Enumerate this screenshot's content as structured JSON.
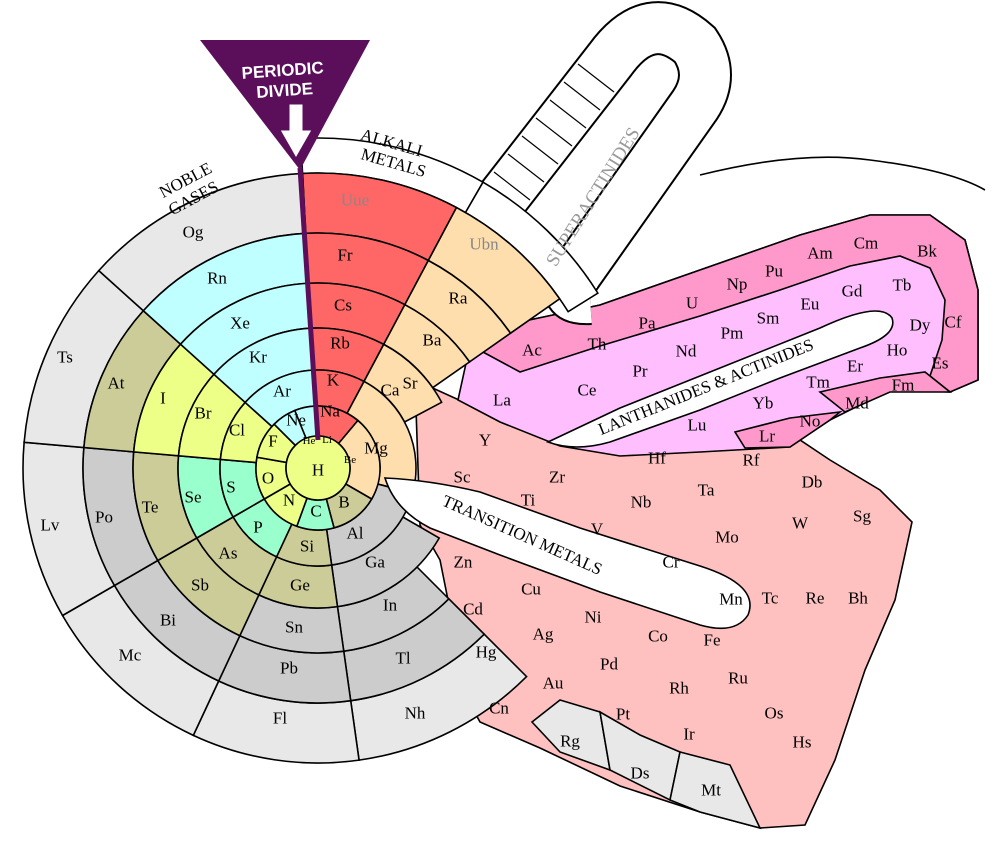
{
  "labels": {
    "periodic_divide": [
      "PERIODIC",
      "DIVIDE"
    ],
    "noble_gases": [
      "NOBLE",
      "GASES"
    ],
    "alkali_metals": [
      "ALKALI",
      "METALS"
    ],
    "superactinides": "SUPERACTINIDES",
    "lanthanides_actinides": "LANTHANIDES & ACTINIDES",
    "transition_metals": "TRANSITION METALS"
  },
  "colors": {
    "nonmetal": "#eeff88",
    "other_nonmetal": "#99ffcc",
    "metalloid": "#cccc99",
    "noble": "#c0ffff",
    "alkali": "#ff6666",
    "alkaline_earth": "#ffdead",
    "post_transition": "#cccccc",
    "unknown": "#e8e8e8",
    "transition": "#ffc0c0",
    "lanthanide": "#ffbfff",
    "actinide": "#ff99cc",
    "undiscovered": "#ffffff",
    "divide": "#5b0f5b"
  },
  "elements": [
    {
      "symbol": "H",
      "category": "nonmetal"
    },
    {
      "symbol": "He",
      "category": "noble"
    },
    {
      "symbol": "Li",
      "category": "alkali"
    },
    {
      "symbol": "Be",
      "category": "alkaline_earth"
    },
    {
      "symbol": "B",
      "category": "metalloid"
    },
    {
      "symbol": "C",
      "category": "other_nonmetal"
    },
    {
      "symbol": "N",
      "category": "nonmetal"
    },
    {
      "symbol": "O",
      "category": "nonmetal"
    },
    {
      "symbol": "F",
      "category": "nonmetal"
    },
    {
      "symbol": "Ne",
      "category": "noble"
    },
    {
      "symbol": "Na",
      "category": "alkali"
    },
    {
      "symbol": "Mg",
      "category": "alkaline_earth"
    },
    {
      "symbol": "Al",
      "category": "post_transition"
    },
    {
      "symbol": "Si",
      "category": "metalloid"
    },
    {
      "symbol": "P",
      "category": "other_nonmetal"
    },
    {
      "symbol": "S",
      "category": "other_nonmetal"
    },
    {
      "symbol": "Cl",
      "category": "nonmetal"
    },
    {
      "symbol": "Ar",
      "category": "noble"
    },
    {
      "symbol": "K",
      "category": "alkali"
    },
    {
      "symbol": "Ca",
      "category": "alkaline_earth"
    },
    {
      "symbol": "Sc",
      "category": "transition"
    },
    {
      "symbol": "Ti",
      "category": "transition"
    },
    {
      "symbol": "V",
      "category": "transition"
    },
    {
      "symbol": "Cr",
      "category": "transition"
    },
    {
      "symbol": "Mn",
      "category": "transition"
    },
    {
      "symbol": "Fe",
      "category": "transition"
    },
    {
      "symbol": "Co",
      "category": "transition"
    },
    {
      "symbol": "Ni",
      "category": "transition"
    },
    {
      "symbol": "Cu",
      "category": "transition"
    },
    {
      "symbol": "Zn",
      "category": "transition"
    },
    {
      "symbol": "Ga",
      "category": "post_transition"
    },
    {
      "symbol": "Ge",
      "category": "metalloid"
    },
    {
      "symbol": "As",
      "category": "metalloid"
    },
    {
      "symbol": "Se",
      "category": "other_nonmetal"
    },
    {
      "symbol": "Br",
      "category": "nonmetal"
    },
    {
      "symbol": "Kr",
      "category": "noble"
    },
    {
      "symbol": "Rb",
      "category": "alkali"
    },
    {
      "symbol": "Sr",
      "category": "alkaline_earth"
    },
    {
      "symbol": "Y",
      "category": "transition"
    },
    {
      "symbol": "Zr",
      "category": "transition"
    },
    {
      "symbol": "Nb",
      "category": "transition"
    },
    {
      "symbol": "Mo",
      "category": "transition"
    },
    {
      "symbol": "Tc",
      "category": "transition"
    },
    {
      "symbol": "Ru",
      "category": "transition"
    },
    {
      "symbol": "Rh",
      "category": "transition"
    },
    {
      "symbol": "Pd",
      "category": "transition"
    },
    {
      "symbol": "Ag",
      "category": "transition"
    },
    {
      "symbol": "Cd",
      "category": "transition"
    },
    {
      "symbol": "In",
      "category": "post_transition"
    },
    {
      "symbol": "Sn",
      "category": "post_transition"
    },
    {
      "symbol": "Sb",
      "category": "metalloid"
    },
    {
      "symbol": "Te",
      "category": "metalloid"
    },
    {
      "symbol": "I",
      "category": "nonmetal"
    },
    {
      "symbol": "Xe",
      "category": "noble"
    },
    {
      "symbol": "Cs",
      "category": "alkali"
    },
    {
      "symbol": "Ba",
      "category": "alkaline_earth"
    },
    {
      "symbol": "La",
      "category": "lanthanide"
    },
    {
      "symbol": "Ce",
      "category": "lanthanide"
    },
    {
      "symbol": "Pr",
      "category": "lanthanide"
    },
    {
      "symbol": "Nd",
      "category": "lanthanide"
    },
    {
      "symbol": "Pm",
      "category": "lanthanide"
    },
    {
      "symbol": "Sm",
      "category": "lanthanide"
    },
    {
      "symbol": "Eu",
      "category": "lanthanide"
    },
    {
      "symbol": "Gd",
      "category": "lanthanide"
    },
    {
      "symbol": "Tb",
      "category": "lanthanide"
    },
    {
      "symbol": "Dy",
      "category": "lanthanide"
    },
    {
      "symbol": "Ho",
      "category": "lanthanide"
    },
    {
      "symbol": "Er",
      "category": "lanthanide"
    },
    {
      "symbol": "Tm",
      "category": "lanthanide"
    },
    {
      "symbol": "Yb",
      "category": "lanthanide"
    },
    {
      "symbol": "Lu",
      "category": "lanthanide"
    },
    {
      "symbol": "Hf",
      "category": "transition"
    },
    {
      "symbol": "Ta",
      "category": "transition"
    },
    {
      "symbol": "W",
      "category": "transition"
    },
    {
      "symbol": "Re",
      "category": "transition"
    },
    {
      "symbol": "Os",
      "category": "transition"
    },
    {
      "symbol": "Ir",
      "category": "transition"
    },
    {
      "symbol": "Pt",
      "category": "transition"
    },
    {
      "symbol": "Au",
      "category": "transition"
    },
    {
      "symbol": "Hg",
      "category": "transition"
    },
    {
      "symbol": "Tl",
      "category": "post_transition"
    },
    {
      "symbol": "Pb",
      "category": "post_transition"
    },
    {
      "symbol": "Bi",
      "category": "post_transition"
    },
    {
      "symbol": "Po",
      "category": "post_transition"
    },
    {
      "symbol": "At",
      "category": "metalloid"
    },
    {
      "symbol": "Rn",
      "category": "noble"
    },
    {
      "symbol": "Fr",
      "category": "alkali"
    },
    {
      "symbol": "Ra",
      "category": "alkaline_earth"
    },
    {
      "symbol": "Ac",
      "category": "actinide"
    },
    {
      "symbol": "Th",
      "category": "actinide"
    },
    {
      "symbol": "Pa",
      "category": "actinide"
    },
    {
      "symbol": "U",
      "category": "actinide"
    },
    {
      "symbol": "Np",
      "category": "actinide"
    },
    {
      "symbol": "Pu",
      "category": "actinide"
    },
    {
      "symbol": "Am",
      "category": "actinide"
    },
    {
      "symbol": "Cm",
      "category": "actinide"
    },
    {
      "symbol": "Bk",
      "category": "actinide"
    },
    {
      "symbol": "Cf",
      "category": "actinide"
    },
    {
      "symbol": "Es",
      "category": "actinide"
    },
    {
      "symbol": "Fm",
      "category": "actinide"
    },
    {
      "symbol": "Md",
      "category": "actinide"
    },
    {
      "symbol": "No",
      "category": "actinide"
    },
    {
      "symbol": "Lr",
      "category": "actinide"
    },
    {
      "symbol": "Rf",
      "category": "transition"
    },
    {
      "symbol": "Db",
      "category": "transition"
    },
    {
      "symbol": "Sg",
      "category": "transition"
    },
    {
      "symbol": "Bh",
      "category": "transition"
    },
    {
      "symbol": "Hs",
      "category": "transition"
    },
    {
      "symbol": "Mt",
      "category": "unknown"
    },
    {
      "symbol": "Ds",
      "category": "unknown"
    },
    {
      "symbol": "Rg",
      "category": "unknown"
    },
    {
      "symbol": "Cn",
      "category": "transition"
    },
    {
      "symbol": "Nh",
      "category": "unknown"
    },
    {
      "symbol": "Fl",
      "category": "unknown"
    },
    {
      "symbol": "Mc",
      "category": "unknown"
    },
    {
      "symbol": "Lv",
      "category": "unknown"
    },
    {
      "symbol": "Ts",
      "category": "unknown"
    },
    {
      "symbol": "Og",
      "category": "unknown"
    },
    {
      "symbol": "Uue",
      "category": "undiscovered"
    },
    {
      "symbol": "Ubn",
      "category": "undiscovered"
    }
  ]
}
